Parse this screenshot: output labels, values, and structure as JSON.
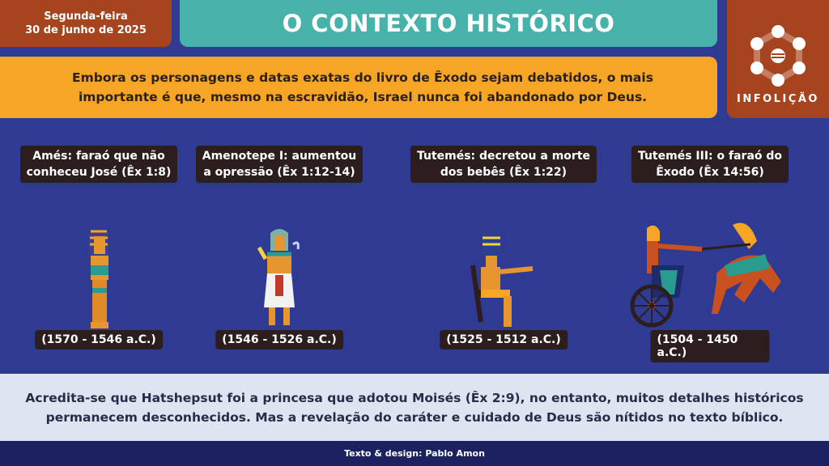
{
  "header": {
    "date_line1": "Segunda-feira",
    "date_line2": "30 de junho de 2025",
    "title": "O CONTEXTO HISTÓRICO",
    "brand": "INFOLIÇÃO"
  },
  "intro": {
    "line1": "Embora os personagens e datas exatas do livro de Êxodo sejam debatidos, o mais",
    "line2": "importante é que, mesmo na escravidão, Israel nunca foi abandonado por Deus."
  },
  "pharaohs": [
    {
      "line1": "Amés: faraó que não",
      "line2": "conheceu José (Êx 1:8)",
      "years": "(1570 - 1546 a.C.)"
    },
    {
      "line1": "Amenotepe I: aumentou",
      "line2": "a opressão (Êx 1:12-14)",
      "years": "(1546 - 1526 a.C.)"
    },
    {
      "line1": "Tutemés: decretou a morte",
      "line2": "dos bebês (Êx 1:22)",
      "years": "(1525 - 1512 a.C.)"
    },
    {
      "line1": "Tutemés III: o faraó do",
      "line2": "Êxodo  (Êx 14:56)",
      "years": "(1504 - 1450 a.C.)"
    }
  ],
  "bottom": {
    "line1": "Acredita-se que Hatshepsut foi a princesa que adotou Moisés (Êx 2:9), no entanto, muitos detalhes históricos",
    "line2": "permanecem desconhecidos. Mas a revelação do caráter e cuidado de Deus são nítidos no texto bíblico."
  },
  "footer": {
    "credit": "Texto & design: Pablo Amon"
  },
  "colors": {
    "background": "#2f3b93",
    "teal": "#46b2a9",
    "orange": "#f6a524",
    "rust": "#a5441e",
    "label": "#2b1e1c",
    "panel": "#dfe5f0",
    "footer": "#1c2160"
  }
}
